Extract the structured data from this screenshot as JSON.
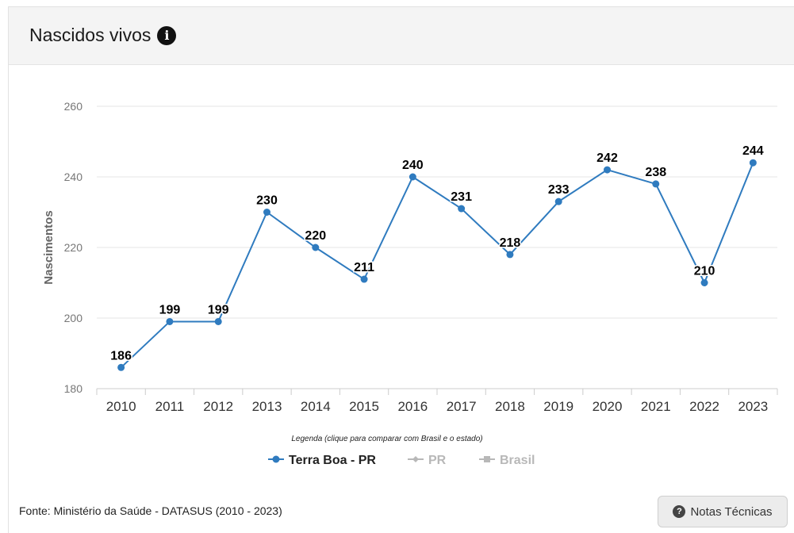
{
  "header": {
    "title": "Nascidos vivos",
    "info_icon": "info-circle-icon"
  },
  "chart_data": {
    "type": "line",
    "title": "",
    "xlabel": "",
    "ylabel": "Nascimentos",
    "categories": [
      "2010",
      "2011",
      "2012",
      "2013",
      "2014",
      "2015",
      "2016",
      "2017",
      "2018",
      "2019",
      "2020",
      "2021",
      "2022",
      "2023"
    ],
    "series": [
      {
        "name": "Terra Boa - PR",
        "values": [
          186,
          199,
          199,
          230,
          220,
          211,
          240,
          231,
          218,
          233,
          242,
          238,
          210,
          244
        ],
        "color": "#2f7bbf"
      }
    ],
    "ylim": [
      180,
      260
    ],
    "yticks": [
      180,
      200,
      220,
      240,
      260
    ],
    "grid": true,
    "data_labels": true,
    "legend": {
      "caption": "Legenda (clique para comparar com Brasil e o estado)",
      "placement": "bottom-center",
      "items": [
        {
          "label": "Terra Boa - PR",
          "active": true,
          "color": "#2f7bbf",
          "marker": "circle"
        },
        {
          "label": "PR",
          "active": false,
          "color": "#bbbbbb",
          "marker": "diamond"
        },
        {
          "label": "Brasil",
          "active": false,
          "color": "#bbbbbb",
          "marker": "square"
        }
      ]
    }
  },
  "footer": {
    "source": "Fonte: Ministério da Saúde - DATASUS (2010 - 2023)",
    "notes_button": "Notas Técnicas",
    "notes_icon": "question-circle-icon"
  }
}
